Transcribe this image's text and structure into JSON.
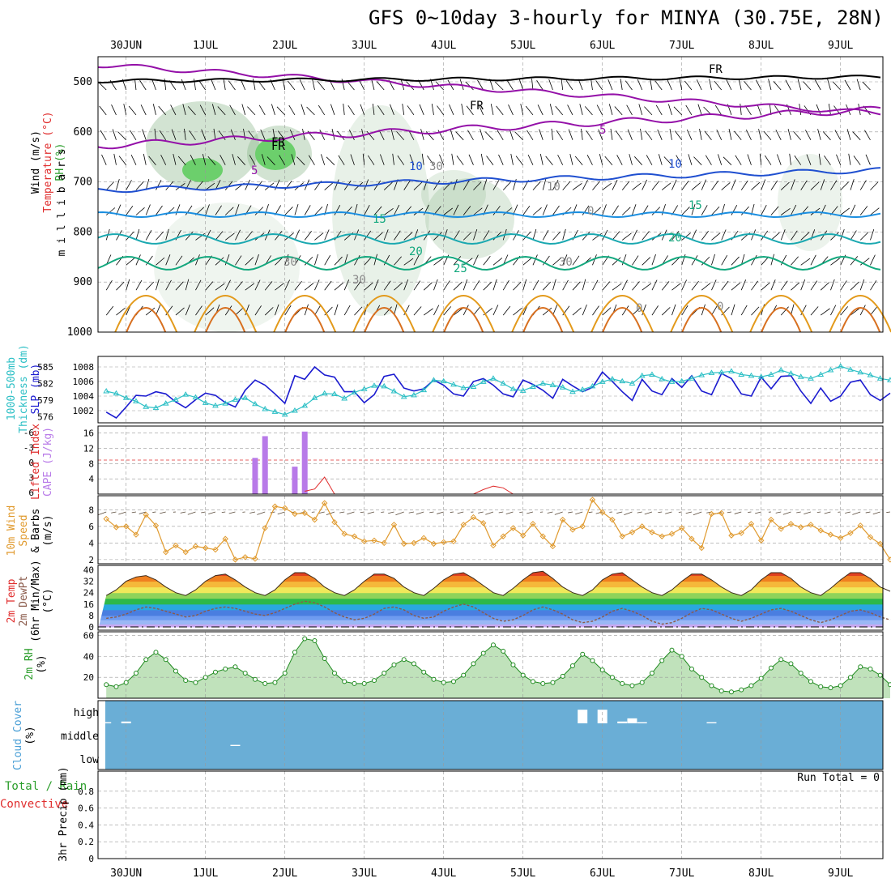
{
  "title": "GFS 0~10day 3-hourly for MINYA (30.75E, 28N)",
  "time_axis": {
    "date_labels": [
      "30JUN",
      "1JUL",
      "2JUL",
      "3JUL",
      "4JUL",
      "5JUL",
      "6JUL",
      "7JUL",
      "8JUL",
      "9JUL"
    ]
  },
  "panels": {
    "upper_air": {
      "ylabels": [
        "Wind (m/s)",
        "Temperature (°C)",
        "RH (%)",
        "m i l l i b a r s"
      ],
      "yticks": [
        500,
        600,
        700,
        800,
        900,
        1000
      ],
      "contour_labels": [
        "FR",
        "FR",
        "FR",
        "FR",
        "5",
        "5",
        "10",
        "10",
        "15",
        "15",
        "20",
        "20",
        "25",
        "0",
        "0",
        "10",
        "30",
        "30",
        "30",
        "30",
        "0"
      ],
      "colors": {
        "temp_cold": "#9410a8",
        "temp_mid": "#1f4fd0",
        "temp_warm": "#13a87e",
        "temp_hot": "#e39a1b",
        "rh_fill": "#6ccf6c",
        "freeze": "#000000"
      }
    },
    "slp_thickness": {
      "ylabels": [
        "1000-500mb",
        "Thickness (dm)",
        "SLP (mb)"
      ],
      "left_ticks": [
        576,
        579,
        582,
        585
      ],
      "right_ticks": [
        1002,
        1004,
        1006,
        1008
      ],
      "colors": {
        "slp": "#1b1bd0",
        "thickness": "#2bbfc5"
      }
    },
    "cape_li": {
      "ylabels": [
        "Lifted Index",
        "CAPE (J/kg)"
      ],
      "left_ticks": [
        "-6",
        "-3",
        "0",
        "3",
        "6"
      ],
      "right_ticks": [
        4,
        8,
        12,
        16
      ],
      "colors": {
        "cape": "#b87ae8",
        "li": "#e02d2d"
      }
    },
    "wind10m": {
      "ylabels": [
        "10m Wind",
        "Speed",
        "& Barbs",
        "(m/s)"
      ],
      "yticks": [
        2,
        4,
        6,
        8
      ],
      "colors": {
        "speed": "#e09a2e"
      }
    },
    "temp2m": {
      "ylabels": [
        "2m Temp",
        "2m DewPt",
        "(6hr Min/Max)",
        "(°C)"
      ],
      "yticks": [
        0,
        8,
        16,
        24,
        32,
        40
      ]
    },
    "rh2m": {
      "ylabels": [
        "2m RH",
        "(%)"
      ],
      "yticks": [
        20,
        40,
        60
      ],
      "colors": {
        "line": "#1f8a1f"
      }
    },
    "cloud": {
      "ylabels": [
        "Cloud Cover",
        "(%)"
      ],
      "levels": [
        "high",
        "middle",
        "low"
      ],
      "colors": {
        "background": "#6aaed6"
      }
    },
    "precip": {
      "ylabels": [
        "Total / Rain",
        "Convective",
        "3hr Precip (mm)"
      ],
      "yticks": [
        "0",
        "0.2",
        "0.4",
        "0.6",
        "0.8"
      ],
      "run_total": "Run Total = 0"
    }
  },
  "chart_data": {
    "type": "line",
    "time_unit": "hours since 29JUN 18Z (3-hourly steps)",
    "slp_mb": [
      1001.8,
      1001.0,
      1002.5,
      1004.1,
      1004.0,
      1004.6,
      1004.3,
      1003.2,
      1002.4,
      1003.5,
      1004.4,
      1004.1,
      1003.1,
      1002.5,
      1004.8,
      1006.2,
      1005.5,
      1004.3,
      1003.0,
      1006.8,
      1006.3,
      1008.0,
      1006.9,
      1006.6,
      1004.6,
      1004.6,
      1003.1,
      1004.2,
      1006.7,
      1007.0,
      1005.1,
      1004.7,
      1005.0,
      1006.2,
      1005.5,
      1004.3,
      1004.0,
      1006.0,
      1006.4,
      1005.5,
      1004.3,
      1003.9,
      1006.2,
      1005.6,
      1004.8,
      1003.7,
      1006.3,
      1005.4,
      1004.6,
      1005.2,
      1007.3,
      1006.0,
      1004.6,
      1003.4,
      1006.3,
      1004.7,
      1004.2,
      1006.4,
      1005.2,
      1006.8,
      1004.7,
      1004.2,
      1007.1,
      1006.4,
      1004.3,
      1004.0,
      1006.6,
      1005.0,
      1006.7,
      1006.8,
      1004.7,
      1003.0,
      1005.1,
      1003.3,
      1004.0,
      1005.9,
      1006.2,
      1004.2,
      1003.4,
      1004.4
    ],
    "thickness_dm": [
      580.6,
      580.2,
      579.4,
      578.8,
      577.8,
      577.6,
      578.4,
      579.1,
      580.0,
      579.5,
      578.5,
      578.0,
      578.4,
      579.1,
      579.4,
      578.3,
      577.4,
      576.9,
      576.4,
      577.1,
      578.0,
      579.4,
      580.2,
      580.1,
      579.3,
      580.4,
      581.0,
      581.6,
      581.5,
      580.6,
      579.6,
      579.9,
      580.8,
      582.6,
      582.4,
      581.8,
      581.2,
      581.4,
      582.3,
      582.9,
      582.0,
      581.0,
      580.7,
      581.4,
      582.0,
      581.7,
      581.3,
      580.5,
      580.9,
      581.5,
      582.3,
      582.8,
      582.4,
      582.0,
      583.4,
      583.6,
      582.8,
      582.3,
      582.4,
      582.9,
      583.5,
      583.9,
      584.0,
      584.2,
      583.6,
      583.4,
      583.2,
      583.6,
      584.4,
      583.8,
      583.2,
      582.9,
      583.6,
      584.4,
      585.1,
      584.5,
      584.0,
      583.5,
      582.9,
      582.6
    ],
    "cape_jkg": [
      0,
      0,
      0,
      0,
      0,
      0,
      0,
      0,
      0,
      0,
      0,
      0,
      0,
      0,
      0,
      0,
      0,
      0,
      0,
      0,
      0,
      0,
      0,
      0,
      0,
      0,
      0,
      0,
      0,
      0,
      0,
      0,
      0,
      0,
      0,
      0,
      0,
      0,
      0,
      0,
      0,
      0,
      0,
      0,
      0,
      0,
      0,
      0,
      0,
      0,
      0,
      0,
      0,
      0,
      0,
      0,
      0,
      0,
      0,
      0,
      0,
      0,
      0,
      0,
      0,
      0,
      0,
      0,
      0,
      0,
      0,
      0,
      0,
      0,
      0,
      0,
      0,
      0,
      0,
      0
    ],
    "cape_bars": [
      {
        "t": 45,
        "v": 9.5
      },
      {
        "t": 48,
        "v": 15.2
      },
      {
        "t": 57,
        "v": 7.2
      },
      {
        "t": 60,
        "v": 16.4
      }
    ],
    "lifted_index": [
      {
        "t": 60,
        "v": 5.5
      },
      {
        "t": 63,
        "v": 5.1
      },
      {
        "t": 66,
        "v": 3.0
      },
      {
        "t": 69,
        "v": 6.0
      },
      {
        "t": 111,
        "v": 6.0
      },
      {
        "t": 114,
        "v": 5.2
      },
      {
        "t": 117,
        "v": 4.6
      },
      {
        "t": 120,
        "v": 4.9
      },
      {
        "t": 123,
        "v": 6.0
      }
    ],
    "wind_speed_ms": [
      6.9,
      5.9,
      6.0,
      5.0,
      7.4,
      6.1,
      2.9,
      3.7,
      2.9,
      3.6,
      3.4,
      3.2,
      4.5,
      2.0,
      2.3,
      2.1,
      5.8,
      8.4,
      8.2,
      7.5,
      7.6,
      6.8,
      8.8,
      6.5,
      5.1,
      4.8,
      4.2,
      4.3,
      4.0,
      6.2,
      3.9,
      4.0,
      4.6,
      3.9,
      4.1,
      4.2,
      6.2,
      7.1,
      6.4,
      3.7,
      4.8,
      5.8,
      4.9,
      6.3,
      4.8,
      3.6,
      6.8,
      5.6,
      6.0,
      9.2,
      7.7,
      6.8,
      4.8,
      5.3,
      6.0,
      5.3,
      4.8,
      5.1,
      5.8,
      4.5,
      3.4,
      7.5,
      7.6,
      4.9,
      5.2,
      6.3,
      4.3,
      6.8,
      5.7,
      6.3,
      5.9,
      6.2,
      5.5,
      5.0,
      4.6,
      5.2,
      6.1,
      4.7,
      3.9,
      2.0
    ],
    "temp2m_c": [
      22,
      26,
      32,
      35,
      36,
      33,
      28,
      24,
      22,
      26,
      32,
      36,
      37,
      33,
      28,
      24,
      22,
      26,
      33,
      38,
      38,
      34,
      28,
      24,
      22,
      26,
      32,
      37,
      37,
      34,
      28,
      24,
      22,
      27,
      33,
      37,
      38,
      34,
      29,
      24,
      22,
      27,
      33,
      38,
      39,
      34,
      28,
      24,
      22,
      26,
      33,
      37,
      38,
      33,
      28,
      24,
      22,
      26,
      32,
      37,
      37,
      33,
      28,
      24,
      22,
      26,
      33,
      38,
      38,
      34,
      28,
      24,
      22,
      27,
      33,
      38,
      38,
      34,
      28,
      25
    ],
    "dewpt2m_c": [
      6,
      7,
      9,
      12,
      14,
      13,
      11,
      9,
      7,
      8,
      11,
      13,
      14,
      13,
      11,
      9,
      8,
      10,
      13,
      16,
      18,
      17,
      14,
      10,
      7,
      5,
      6,
      9,
      13,
      14,
      12,
      8,
      6,
      7,
      11,
      14,
      16,
      14,
      10,
      6,
      4,
      5,
      8,
      12,
      14,
      12,
      9,
      5,
      3,
      4,
      7,
      11,
      13,
      11,
      8,
      4,
      2,
      3,
      6,
      10,
      13,
      12,
      9,
      6,
      4,
      6,
      9,
      12,
      13,
      11,
      8,
      5,
      3,
      5,
      8,
      11,
      12,
      10,
      7,
      5
    ],
    "rh2m_pct": [
      13,
      11,
      15,
      24,
      37,
      44,
      37,
      26,
      17,
      15,
      20,
      25,
      28,
      30,
      24,
      18,
      14,
      15,
      24,
      44,
      57,
      55,
      38,
      24,
      16,
      14,
      14,
      17,
      24,
      32,
      37,
      33,
      25,
      18,
      15,
      16,
      22,
      33,
      43,
      51,
      45,
      32,
      22,
      16,
      14,
      15,
      21,
      31,
      42,
      36,
      27,
      20,
      14,
      12,
      15,
      24,
      36,
      46,
      40,
      28,
      20,
      12,
      7,
      6,
      8,
      12,
      19,
      29,
      37,
      33,
      24,
      16,
      11,
      10,
      12,
      20,
      30,
      28,
      22,
      13
    ],
    "cloud_high_pct": [
      {
        "t": 0,
        "v": 5
      },
      {
        "t": 6,
        "v": 8
      },
      {
        "t": 144,
        "v": 60
      },
      {
        "t": 150,
        "v": 60
      },
      {
        "t": 156,
        "v": 8
      },
      {
        "t": 159,
        "v": 22
      },
      {
        "t": 162,
        "v": 5
      },
      {
        "t": 183,
        "v": 5
      }
    ],
    "cloud_mid_pct": [
      {
        "t": 39,
        "v": 5
      }
    ],
    "cloud_low_pct": [],
    "precip_mm": [],
    "precip_ylim": [
      0,
      1
    ]
  }
}
